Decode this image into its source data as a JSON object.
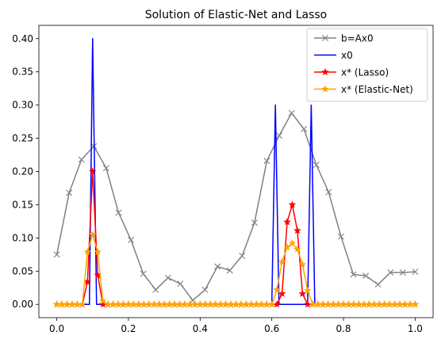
{
  "chart_data": {
    "type": "line",
    "title": "Solution of Elastic-Net and Lasso",
    "xlabel": "",
    "ylabel": "",
    "xlim": [
      -0.05,
      1.05
    ],
    "ylim": [
      -0.02,
      0.42
    ],
    "x_ticks": [
      0.0,
      0.2,
      0.4,
      0.6,
      0.8,
      1.0
    ],
    "x_tick_labels": [
      "0.0",
      "0.2",
      "0.4",
      "0.6",
      "0.8",
      "1.0"
    ],
    "y_ticks": [
      0.0,
      0.05,
      0.1,
      0.15,
      0.2,
      0.25,
      0.3,
      0.35,
      0.4
    ],
    "y_tick_labels": [
      "0.00",
      "0.05",
      "0.10",
      "0.15",
      "0.20",
      "0.25",
      "0.30",
      "0.35",
      "0.40"
    ],
    "grid": false,
    "legend_position": "top-right",
    "series": [
      {
        "name": "b=Ax0",
        "color": "#808080",
        "marker": "x",
        "x": [
          0.0,
          0.0345,
          0.069,
          0.1034,
          0.1379,
          0.1724,
          0.2069,
          0.2414,
          0.2759,
          0.3103,
          0.3448,
          0.3793,
          0.4138,
          0.4483,
          0.4828,
          0.5172,
          0.5517,
          0.5862,
          0.6207,
          0.6552,
          0.6897,
          0.7241,
          0.7586,
          0.7931,
          0.8276,
          0.8621,
          0.8966,
          0.931,
          0.9655,
          1.0
        ],
        "y": [
          0.075,
          0.168,
          0.218,
          0.238,
          0.205,
          0.138,
          0.097,
          0.046,
          0.022,
          0.04,
          0.031,
          0.006,
          0.022,
          0.057,
          0.051,
          0.073,
          0.123,
          0.216,
          0.254,
          0.288,
          0.264,
          0.21,
          0.169,
          0.102,
          0.045,
          0.043,
          0.03,
          0.048,
          0.048,
          0.049
        ]
      },
      {
        "name": "x0",
        "color": "#0000ff",
        "marker": "none",
        "x": [
          0.0,
          0.08,
          0.091,
          0.1,
          0.111,
          0.12,
          0.6,
          0.61,
          0.62,
          0.69,
          0.7,
          0.71,
          0.72,
          1.0
        ],
        "y": [
          0.0,
          0.0,
          0.0,
          0.4,
          0.0,
          0.0,
          0.0,
          0.3,
          0.0,
          0.0,
          0.0,
          0.3,
          0.0,
          0.0
        ]
      },
      {
        "name": "x* (Lasso)",
        "color": "#ff0000",
        "marker": "star",
        "x": [
          0.0,
          0.0143,
          0.0286,
          0.0429,
          0.0571,
          0.0714,
          0.0857,
          0.1,
          0.1143,
          0.1286,
          0.1429,
          0.1571,
          0.1714,
          0.1857,
          0.2,
          0.2143,
          0.2286,
          0.2429,
          0.2571,
          0.2714,
          0.2857,
          0.3,
          0.3143,
          0.3286,
          0.3429,
          0.3571,
          0.3714,
          0.3857,
          0.4,
          0.4143,
          0.4286,
          0.4429,
          0.4571,
          0.4714,
          0.4857,
          0.5,
          0.5143,
          0.5286,
          0.5429,
          0.5571,
          0.5714,
          0.5857,
          0.6,
          0.6143,
          0.6286,
          0.6429,
          0.6571,
          0.6714,
          0.6857,
          0.7,
          0.7143,
          0.7286,
          0.7429,
          0.7571,
          0.7714,
          0.7857,
          0.8,
          0.8143,
          0.8286,
          0.8429,
          0.8571,
          0.8714,
          0.8857,
          0.9,
          0.9143,
          0.9286,
          0.9429,
          0.9571,
          0.9714,
          0.9857,
          1.0
        ],
        "y": [
          0.0,
          0.0,
          0.0,
          0.0,
          0.0,
          0.0,
          0.034,
          0.2,
          0.044,
          0.0,
          0.0,
          0.0,
          0.0,
          0.0,
          0.0,
          0.0,
          0.0,
          0.0,
          0.0,
          0.0,
          0.0,
          0.0,
          0.0,
          0.0,
          0.0,
          0.0,
          0.0,
          0.0,
          0.0,
          0.0,
          0.0,
          0.0,
          0.0,
          0.0,
          0.0,
          0.0,
          0.0,
          0.0,
          0.0,
          0.0,
          0.0,
          0.0,
          0.0,
          0.0,
          0.016,
          0.124,
          0.15,
          0.111,
          0.016,
          0.0,
          0.0,
          0.0,
          0.0,
          0.0,
          0.0,
          0.0,
          0.0,
          0.0,
          0.0,
          0.0,
          0.0,
          0.0,
          0.0,
          0.0,
          0.0,
          0.0,
          0.0,
          0.0,
          0.0,
          0.0,
          0.0
        ]
      },
      {
        "name": "x* (Elastic-Net)",
        "color": "#ffa500",
        "marker": "star",
        "x": [
          0.0,
          0.0143,
          0.0286,
          0.0429,
          0.0571,
          0.0714,
          0.0857,
          0.1,
          0.1143,
          0.1286,
          0.1429,
          0.1571,
          0.1714,
          0.1857,
          0.2,
          0.2143,
          0.2286,
          0.2429,
          0.2571,
          0.2714,
          0.2857,
          0.3,
          0.3143,
          0.3286,
          0.3429,
          0.3571,
          0.3714,
          0.3857,
          0.4,
          0.4143,
          0.4286,
          0.4429,
          0.4571,
          0.4714,
          0.4857,
          0.5,
          0.5143,
          0.5286,
          0.5429,
          0.5571,
          0.5714,
          0.5857,
          0.6,
          0.6143,
          0.6286,
          0.6429,
          0.6571,
          0.6714,
          0.6857,
          0.7,
          0.7143,
          0.7286,
          0.7429,
          0.7571,
          0.7714,
          0.7857,
          0.8,
          0.8143,
          0.8286,
          0.8429,
          0.8571,
          0.8714,
          0.8857,
          0.9,
          0.9143,
          0.9286,
          0.9429,
          0.9571,
          0.9714,
          0.9857,
          1.0
        ],
        "y": [
          0.0,
          0.0,
          0.0,
          0.0,
          0.0,
          0.0,
          0.079,
          0.105,
          0.079,
          0.005,
          0.0,
          0.0,
          0.0,
          0.0,
          0.0,
          0.0,
          0.0,
          0.0,
          0.0,
          0.0,
          0.0,
          0.0,
          0.0,
          0.0,
          0.0,
          0.0,
          0.0,
          0.0,
          0.0,
          0.0,
          0.0,
          0.0,
          0.0,
          0.0,
          0.0,
          0.0,
          0.0,
          0.0,
          0.0,
          0.0,
          0.0,
          0.0,
          0.0,
          0.022,
          0.064,
          0.086,
          0.092,
          0.083,
          0.06,
          0.021,
          0.0,
          0.0,
          0.0,
          0.0,
          0.0,
          0.0,
          0.0,
          0.0,
          0.0,
          0.0,
          0.0,
          0.0,
          0.0,
          0.0,
          0.0,
          0.0,
          0.0,
          0.0,
          0.0,
          0.0,
          0.0
        ]
      }
    ]
  }
}
